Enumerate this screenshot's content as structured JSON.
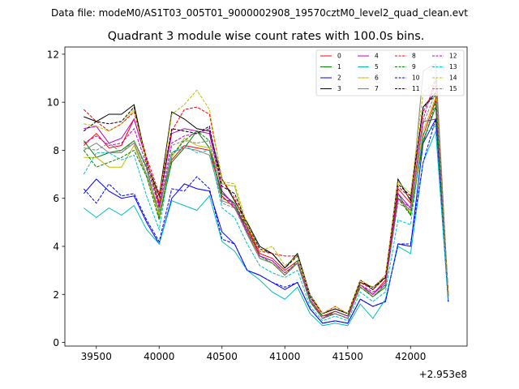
{
  "chart_data": {
    "type": "line",
    "suptitle": "Data file: modeM0/AS1T03_005T01_9000002908_19570cztM0_level2_quad_clean.evt",
    "title": "Quadrant 3 module wise count rates with 100.0s bins.",
    "xlabel": "",
    "ylabel": "",
    "x_offset_label": "+2.953e8",
    "xlim": [
      39250,
      42450
    ],
    "ylim": [
      -0.15,
      12.3
    ],
    "xticks": [
      39500,
      40000,
      40500,
      41000,
      41500,
      42000
    ],
    "xtick_labels": [
      "39500",
      "40000",
      "40500",
      "41000",
      "41500",
      "42000"
    ],
    "yticks": [
      0,
      2,
      4,
      6,
      8,
      10,
      12
    ],
    "ytick_labels": [
      "0",
      "2",
      "4",
      "6",
      "8",
      "10",
      "12"
    ],
    "x": [
      39400,
      39500,
      39600,
      39700,
      39800,
      39900,
      40000,
      40100,
      40200,
      40300,
      40400,
      40500,
      40600,
      40700,
      40800,
      40900,
      41000,
      41100,
      41200,
      41300,
      41400,
      41500,
      41600,
      41700,
      41800,
      41900,
      42000,
      42100,
      42200,
      42300
    ],
    "legend_position": "upper-right",
    "series": [
      {
        "name": "0",
        "color": "#ff0000",
        "dash": "solid",
        "values": [
          8.2,
          8.7,
          8.1,
          8.2,
          9.3,
          7.6,
          5.7,
          7.6,
          8.2,
          8.1,
          8.0,
          6.1,
          5.6,
          4.8,
          3.7,
          3.5,
          3.0,
          3.4,
          1.8,
          1.1,
          1.3,
          1.1,
          2.4,
          2.0,
          2.6,
          6.4,
          5.8,
          8.6,
          10.1,
          1.9
        ]
      },
      {
        "name": "1",
        "color": "#008000",
        "dash": "solid",
        "values": [
          8.4,
          7.7,
          7.9,
          8.0,
          8.4,
          7.3,
          5.2,
          7.5,
          8.1,
          8.8,
          8.1,
          6.2,
          5.8,
          4.6,
          3.5,
          3.3,
          2.8,
          3.3,
          1.7,
          1.1,
          1.2,
          1.0,
          2.3,
          1.9,
          2.3,
          6.2,
          5.3,
          8.4,
          9.8,
          2.0
        ]
      },
      {
        "name": "2",
        "color": "#0000ff",
        "dash": "solid",
        "values": [
          6.2,
          6.8,
          6.3,
          6.0,
          6.1,
          5.0,
          4.1,
          6.0,
          6.6,
          6.4,
          6.3,
          4.6,
          4.1,
          3.0,
          2.8,
          2.5,
          2.2,
          2.5,
          1.4,
          0.8,
          0.9,
          0.8,
          1.8,
          1.5,
          1.7,
          4.1,
          4.0,
          8.3,
          9.3,
          1.7
        ]
      },
      {
        "name": "3",
        "color": "#000000",
        "dash": "solid",
        "values": [
          9.4,
          9.2,
          9.5,
          9.5,
          9.9,
          7.5,
          6.1,
          9.6,
          9.3,
          8.9,
          8.8,
          6.8,
          5.9,
          5.0,
          4.0,
          3.7,
          3.1,
          3.7,
          2.0,
          1.2,
          1.4,
          1.2,
          2.5,
          2.3,
          2.7,
          6.8,
          5.9,
          9.8,
          10.4,
          2.0
        ]
      },
      {
        "name": "4",
        "color": "#bf00bf",
        "dash": "solid",
        "values": [
          8.9,
          9.0,
          8.3,
          8.5,
          9.3,
          7.6,
          5.8,
          8.7,
          8.9,
          8.8,
          8.7,
          6.3,
          5.7,
          4.6,
          3.6,
          3.4,
          2.9,
          3.3,
          1.8,
          1.0,
          1.3,
          1.1,
          2.4,
          2.0,
          2.5,
          6.2,
          5.6,
          9.2,
          9.3,
          1.9
        ]
      },
      {
        "name": "5",
        "color": "#00bfbf",
        "dash": "solid",
        "values": [
          5.6,
          5.2,
          5.6,
          5.3,
          5.7,
          4.7,
          4.1,
          5.9,
          5.7,
          5.5,
          6.1,
          4.2,
          3.8,
          3.0,
          2.6,
          2.1,
          1.8,
          2.3,
          1.2,
          0.7,
          0.8,
          0.7,
          1.6,
          1.0,
          1.8,
          4.0,
          3.7,
          7.5,
          8.8,
          1.7
        ]
      },
      {
        "name": "6",
        "color": "#bfbf00",
        "dash": "solid",
        "values": [
          7.7,
          7.7,
          7.3,
          7.3,
          8.2,
          6.9,
          5.3,
          7.7,
          8.5,
          8.2,
          8.1,
          6.6,
          6.5,
          4.7,
          3.5,
          3.3,
          2.9,
          3.3,
          1.7,
          1.0,
          1.2,
          1.0,
          2.3,
          1.9,
          2.4,
          6.0,
          5.4,
          8.8,
          10.2,
          1.9
        ]
      },
      {
        "name": "7",
        "color": "#808080",
        "dash": "solid",
        "values": [
          8.0,
          8.3,
          7.9,
          7.9,
          8.3,
          7.0,
          5.5,
          7.9,
          8.1,
          8.0,
          7.8,
          5.9,
          5.7,
          4.5,
          3.5,
          3.3,
          2.8,
          3.3,
          1.7,
          1.0,
          1.2,
          1.0,
          2.4,
          1.9,
          2.4,
          6.0,
          5.5,
          11.3,
          11.6,
          1.9
        ]
      },
      {
        "name": "8",
        "color": "#ff0000",
        "dash": "dashed",
        "values": [
          9.7,
          9.2,
          8.8,
          9.1,
          9.6,
          7.7,
          6.2,
          8.8,
          9.7,
          9.8,
          9.5,
          6.8,
          6.0,
          4.8,
          3.8,
          3.7,
          3.6,
          3.6,
          1.9,
          1.2,
          1.5,
          1.2,
          2.5,
          2.2,
          2.8,
          6.5,
          6.0,
          9.6,
          10.7,
          2.0
        ]
      },
      {
        "name": "9",
        "color": "#008000",
        "dash": "dashed",
        "values": [
          8.0,
          7.3,
          7.5,
          7.7,
          8.0,
          6.9,
          5.1,
          7.8,
          8.4,
          8.8,
          8.4,
          6.0,
          5.8,
          4.8,
          3.6,
          3.3,
          2.8,
          3.4,
          1.7,
          1.0,
          1.3,
          1.1,
          2.3,
          1.9,
          2.4,
          6.0,
          5.3,
          8.3,
          10.0,
          2.0
        ]
      },
      {
        "name": "10",
        "color": "#0000ff",
        "dash": "dashed",
        "values": [
          6.4,
          5.8,
          6.6,
          6.1,
          6.2,
          5.1,
          4.2,
          6.4,
          6.3,
          6.9,
          6.4,
          4.3,
          4.1,
          3.0,
          2.8,
          2.5,
          2.3,
          2.5,
          1.4,
          0.8,
          0.9,
          0.8,
          1.8,
          1.5,
          1.7,
          4.1,
          4.1,
          7.5,
          9.3,
          1.7
        ]
      },
      {
        "name": "11",
        "color": "#000000",
        "dash": "dashed",
        "values": [
          8.8,
          9.2,
          9.1,
          9.2,
          9.8,
          7.5,
          5.9,
          8.9,
          8.8,
          8.7,
          9.0,
          6.5,
          6.2,
          4.9,
          3.9,
          3.7,
          3.1,
          3.6,
          1.9,
          1.2,
          1.4,
          1.2,
          2.6,
          2.2,
          2.7,
          6.6,
          6.1,
          9.8,
          10.3,
          2.0
        ]
      },
      {
        "name": "12",
        "color": "#bf00bf",
        "dash": "dashed",
        "values": [
          8.3,
          8.6,
          8.2,
          8.3,
          8.9,
          7.4,
          5.6,
          8.3,
          8.6,
          8.7,
          8.9,
          6.3,
          5.6,
          4.7,
          3.6,
          3.4,
          2.9,
          3.3,
          1.8,
          1.0,
          1.2,
          1.0,
          2.4,
          2.1,
          2.4,
          6.0,
          5.6,
          9.3,
          11.0,
          1.9
        ]
      },
      {
        "name": "13",
        "color": "#00bfbf",
        "dash": "dashed",
        "values": [
          7.0,
          7.9,
          7.9,
          7.6,
          7.8,
          6.1,
          4.7,
          7.9,
          8.2,
          7.9,
          8.0,
          5.6,
          5.2,
          4.1,
          3.2,
          2.9,
          2.7,
          3.0,
          1.5,
          0.9,
          1.1,
          0.9,
          2.1,
          1.7,
          2.1,
          5.1,
          4.9,
          8.7,
          9.0,
          1.8
        ]
      },
      {
        "name": "14",
        "color": "#bfbf00",
        "dash": "dashed",
        "values": [
          9.1,
          9.0,
          8.8,
          9.1,
          9.7,
          7.5,
          5.9,
          9.5,
          9.9,
          10.5,
          9.7,
          6.7,
          6.6,
          4.9,
          3.8,
          4.0,
          3.2,
          3.6,
          2.0,
          1.2,
          1.5,
          1.2,
          2.6,
          2.3,
          2.8,
          6.7,
          6.2,
          10.4,
          10.8,
          2.0
        ]
      },
      {
        "name": "15",
        "color": "#808080",
        "dash": "dashed",
        "values": [
          8.1,
          8.0,
          8.3,
          7.9,
          8.4,
          7.2,
          5.4,
          8.2,
          8.4,
          8.3,
          8.4,
          5.8,
          5.6,
          4.5,
          3.5,
          3.3,
          2.8,
          3.3,
          1.8,
          1.0,
          1.2,
          1.0,
          2.4,
          1.9,
          2.4,
          5.8,
          5.5,
          9.1,
          10.4,
          1.9
        ]
      }
    ]
  }
}
